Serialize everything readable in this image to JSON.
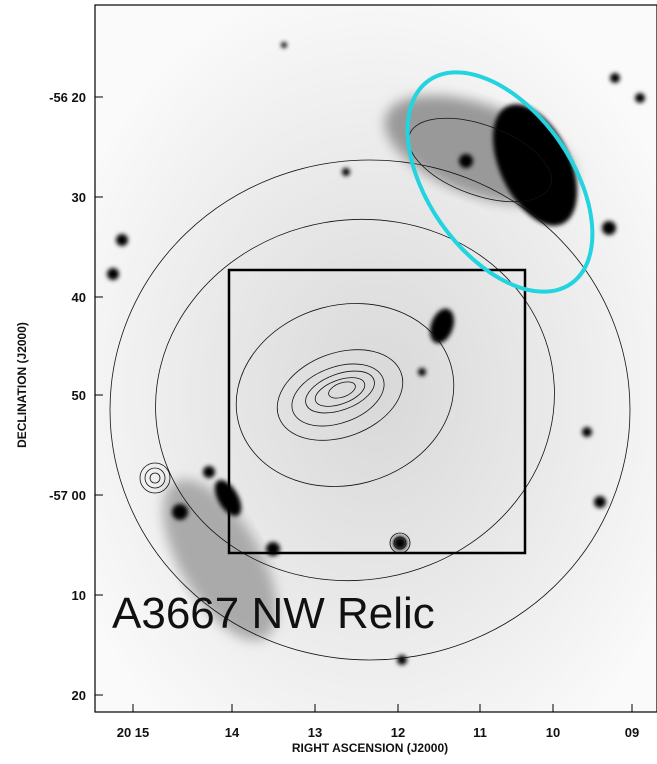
{
  "figure": {
    "annotation": "A3667 NW Relic",
    "ylabel": "DECLINATION (J2000)",
    "xlabel": "RIGHT ASCENSION (J2000)",
    "yticks": [
      "-56 20",
      "30",
      "40",
      "50",
      "-57 00",
      "10",
      "20"
    ],
    "xticks": [
      "20 15",
      "14",
      "13",
      "12",
      "11",
      "10",
      "09"
    ]
  }
}
